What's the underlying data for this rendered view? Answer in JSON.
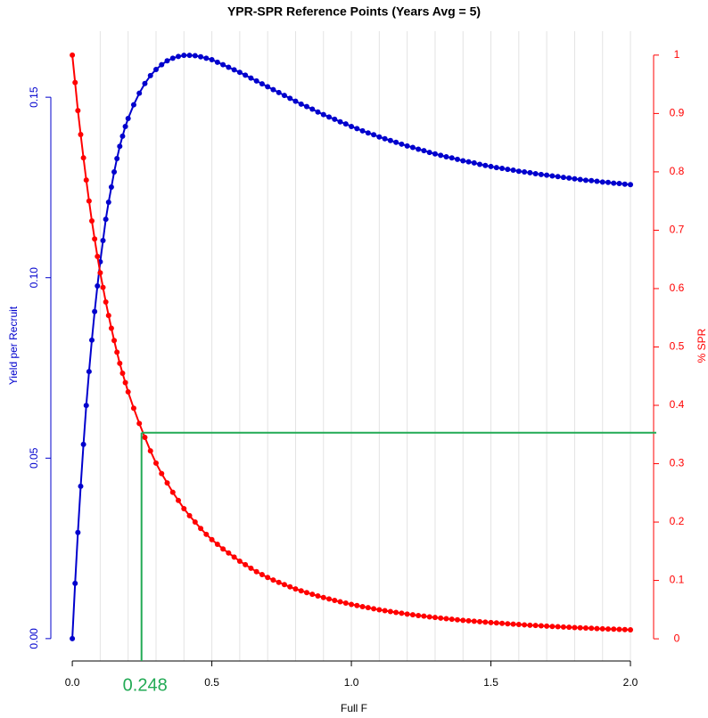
{
  "chart_data": {
    "type": "line",
    "title": "YPR-SPR Reference Points (Years Avg = 5)",
    "x_label": "Full F",
    "y_label": "Yield per Recruit",
    "y2_label": "% SPR",
    "x": [
      0,
      0.01,
      0.02,
      0.03,
      0.04,
      0.05,
      0.06,
      0.07,
      0.08,
      0.09,
      0.1,
      0.11,
      0.12,
      0.13,
      0.14,
      0.15,
      0.16,
      0.17,
      0.18,
      0.19,
      0.2,
      0.22,
      0.24,
      0.26,
      0.28,
      0.3,
      0.32,
      0.34,
      0.36,
      0.38,
      0.4,
      0.42,
      0.44,
      0.46,
      0.48,
      0.5,
      0.52,
      0.54,
      0.56,
      0.58,
      0.6,
      0.62,
      0.64,
      0.66,
      0.68,
      0.7,
      0.72,
      0.74,
      0.76,
      0.78,
      0.8,
      0.82,
      0.84,
      0.86,
      0.88,
      0.9,
      0.92,
      0.94,
      0.96,
      0.98,
      1,
      1.02,
      1.04,
      1.06,
      1.08,
      1.1,
      1.12,
      1.14,
      1.16,
      1.18,
      1.2,
      1.22,
      1.24,
      1.26,
      1.28,
      1.3,
      1.32,
      1.34,
      1.36,
      1.38,
      1.4,
      1.42,
      1.44,
      1.46,
      1.48,
      1.5,
      1.52,
      1.54,
      1.56,
      1.58,
      1.6,
      1.62,
      1.64,
      1.66,
      1.68,
      1.7,
      1.72,
      1.74,
      1.76,
      1.78,
      1.8,
      1.82,
      1.84,
      1.86,
      1.88,
      1.9,
      1.92,
      1.94,
      1.96,
      1.98,
      2
    ],
    "series": [
      {
        "color": "#0000cd",
        "axis": "y",
        "values": [
          0,
          0.0153,
          0.0294,
          0.0422,
          0.0538,
          0.0646,
          0.074,
          0.0827,
          0.0906,
          0.0977,
          0.1044,
          0.1103,
          0.1162,
          0.1209,
          0.1251,
          0.1293,
          0.133,
          0.1364,
          0.1392,
          0.1419,
          0.1441,
          0.1479,
          0.1511,
          0.1538,
          0.156,
          0.1577,
          0.159,
          0.1601,
          0.1608,
          0.1613,
          0.1616,
          0.1616,
          0.1615,
          0.1612,
          0.1608,
          0.1604,
          0.1597,
          0.159,
          0.1583,
          0.1576,
          0.1569,
          0.1561,
          0.1553,
          0.1545,
          0.1537,
          0.1529,
          0.1521,
          0.1513,
          0.1505,
          0.1497,
          0.1489,
          0.1481,
          0.1474,
          0.1467,
          0.1459,
          0.1452,
          0.1445,
          0.1439,
          0.1432,
          0.1426,
          0.1419,
          0.1413,
          0.1407,
          0.1401,
          0.1396,
          0.139,
          0.1385,
          0.138,
          0.1375,
          0.137,
          0.1365,
          0.1361,
          0.1356,
          0.1352,
          0.1347,
          0.1343,
          0.1339,
          0.1335,
          0.1332,
          0.1328,
          0.1324,
          0.1321,
          0.1318,
          0.1314,
          0.1311,
          0.1308,
          0.1305,
          0.1303,
          0.13,
          0.1298,
          0.1295,
          0.1293,
          0.1291,
          0.1288,
          0.1286,
          0.1284,
          0.1282,
          0.128,
          0.1278,
          0.1276,
          0.1274,
          0.1272,
          0.127,
          0.1269,
          0.1267,
          0.1265,
          0.1264,
          0.1262,
          0.1261,
          0.1259,
          0.1258
        ]
      },
      {
        "color": "#ff0000",
        "axis": "y2",
        "values": [
          1,
          0.953,
          0.905,
          0.864,
          0.824,
          0.786,
          0.75,
          0.716,
          0.685,
          0.655,
          0.627,
          0.602,
          0.577,
          0.554,
          0.532,
          0.511,
          0.491,
          0.472,
          0.455,
          0.439,
          0.423,
          0.395,
          0.369,
          0.345,
          0.322,
          0.301,
          0.283,
          0.267,
          0.251,
          0.237,
          0.223,
          0.211,
          0.2,
          0.189,
          0.179,
          0.17,
          0.162,
          0.154,
          0.147,
          0.14,
          0.133,
          0.127,
          0.121,
          0.115,
          0.11,
          0.105,
          0.1007,
          0.0967,
          0.0928,
          0.089,
          0.0854,
          0.0822,
          0.0792,
          0.0762,
          0.0734,
          0.0707,
          0.0682,
          0.0658,
          0.0634,
          0.0612,
          0.059,
          0.057,
          0.0551,
          0.0533,
          0.0515,
          0.0498,
          0.0482,
          0.0467,
          0.0452,
          0.0438,
          0.0424,
          0.0411,
          0.0399,
          0.0388,
          0.0376,
          0.0365,
          0.0355,
          0.0345,
          0.0335,
          0.0326,
          0.0317,
          0.0309,
          0.0301,
          0.0294,
          0.0286,
          0.0279,
          0.0272,
          0.0265,
          0.0258,
          0.0251,
          0.0245,
          0.0239,
          0.0233,
          0.0228,
          0.0222,
          0.0217,
          0.0212,
          0.0207,
          0.0202,
          0.0198,
          0.0193,
          0.0189,
          0.0184,
          0.018,
          0.0176,
          0.0172,
          0.0168,
          0.0165,
          0.0162,
          0.0158,
          0.0155
        ]
      }
    ],
    "reference": {
      "x": 0.248,
      "spr": 0.353,
      "color": "#22aa55"
    },
    "xlim": [
      -0.077,
      2.083
    ],
    "ylim": [
      -0.0062,
      0.1683
    ],
    "y2lim": [
      -0.038,
      1.041
    ],
    "xticks": [
      {
        "value": 0,
        "label": "0.0"
      },
      0.5,
      {
        "value": 1,
        "label": "1.0"
      },
      1.5,
      {
        "value": 2,
        "label": "2.0"
      }
    ],
    "yticks": [
      {
        "value": 0,
        "label": "0.00"
      },
      0.05,
      {
        "value": 0.1,
        "label": "0.10"
      },
      0.15
    ],
    "y2ticks": [
      0,
      0.1,
      0.2,
      0.3,
      0.4,
      0.5,
      0.6,
      0.7,
      0.8,
      0.9,
      1
    ],
    "x_grid": [
      0.1,
      0.2,
      0.3,
      0.4,
      0.5,
      0.6,
      0.7,
      0.8,
      0.9,
      1,
      1.1,
      1.2,
      1.3,
      1.4,
      1.5,
      1.6,
      1.7,
      1.8,
      1.9,
      2
    ],
    "grid_color": "#e3e3e3"
  }
}
